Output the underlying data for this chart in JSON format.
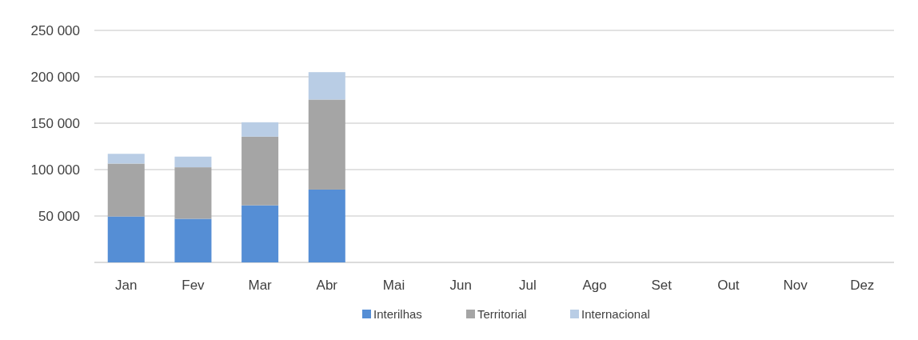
{
  "chart_data": {
    "type": "bar",
    "stacked": true,
    "categories": [
      "Jan",
      "Fev",
      "Mar",
      "Abr",
      "Mai",
      "Jun",
      "Jul",
      "Ago",
      "Set",
      "Out",
      "Nov",
      "Dez"
    ],
    "series": [
      {
        "name": "Interilhas",
        "color": "#558ed5",
        "values": [
          49500,
          47000,
          61500,
          78500,
          null,
          null,
          null,
          null,
          null,
          null,
          null,
          null
        ]
      },
      {
        "name": "Territorial",
        "color": "#a5a5a5",
        "values": [
          57000,
          55500,
          74000,
          97000,
          null,
          null,
          null,
          null,
          null,
          null,
          null,
          null
        ]
      },
      {
        "name": "Internacional",
        "color": "#b9cde5",
        "values": [
          10500,
          11500,
          15500,
          29500,
          null,
          null,
          null,
          null,
          null,
          null,
          null,
          null
        ]
      }
    ],
    "ylim": [
      0,
      250000
    ],
    "yticks": [
      {
        "value": 0,
        "label": null
      },
      {
        "value": 50000,
        "label": "50 000"
      },
      {
        "value": 100000,
        "label": "100 000"
      },
      {
        "value": 150000,
        "label": "150 000"
      },
      {
        "value": 200000,
        "label": "200 000"
      },
      {
        "value": 250000,
        "label": "250 000"
      }
    ],
    "grid": "y",
    "legend": "bottom"
  }
}
